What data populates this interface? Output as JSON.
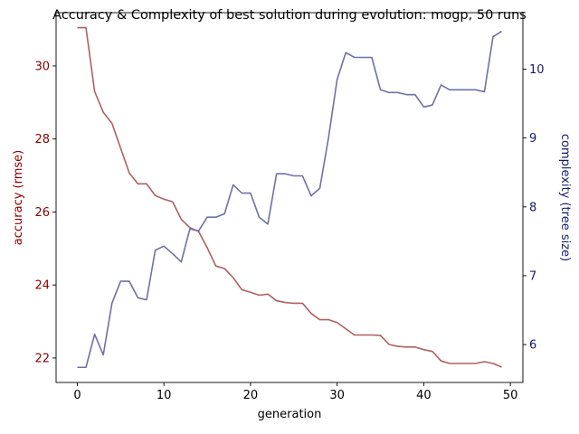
{
  "chart_data": {
    "type": "line",
    "title": "Accuracy & Complexity of best solution during evolution: mogp, 50 runs",
    "xlabel": "generation",
    "xlim": [
      -2.45,
      51.45
    ],
    "xticks": [
      0,
      10,
      20,
      30,
      40,
      50
    ],
    "x": [
      0,
      1,
      2,
      3,
      4,
      5,
      6,
      7,
      8,
      9,
      10,
      11,
      12,
      13,
      14,
      15,
      16,
      17,
      18,
      19,
      20,
      21,
      22,
      23,
      24,
      25,
      26,
      27,
      28,
      29,
      30,
      31,
      32,
      33,
      34,
      35,
      36,
      37,
      38,
      39,
      40,
      41,
      42,
      43,
      44,
      45,
      46,
      47,
      48,
      49
    ],
    "grid": false,
    "legend": "none",
    "axes": {
      "left": {
        "label": "accuracy (rmse)",
        "color": "#8b0000",
        "ylim": [
          21.33,
          31.46
        ],
        "ticks": [
          22,
          24,
          26,
          28,
          30
        ]
      },
      "right": {
        "label": "complexity (tree size)",
        "color": "#191970",
        "ylim": [
          5.45,
          10.82
        ],
        "ticks": [
          6,
          7,
          8,
          9,
          10
        ]
      }
    },
    "series": [
      {
        "axis": "left",
        "color": "#b06060",
        "values": [
          31.05,
          31.05,
          29.3,
          28.73,
          28.43,
          27.75,
          27.07,
          26.77,
          26.77,
          26.45,
          26.35,
          26.28,
          25.8,
          25.57,
          25.47,
          25.02,
          24.52,
          24.45,
          24.2,
          23.87,
          23.8,
          23.72,
          23.75,
          23.57,
          23.52,
          23.5,
          23.5,
          23.22,
          23.05,
          23.05,
          22.97,
          22.8,
          22.63,
          22.63,
          22.63,
          22.62,
          22.37,
          22.32,
          22.3,
          22.3,
          22.23,
          22.18,
          21.92,
          21.85,
          21.85,
          21.85,
          21.85,
          21.9,
          21.85,
          21.75
        ]
      },
      {
        "axis": "right",
        "color": "#7070a8",
        "values": [
          5.67,
          5.67,
          6.15,
          5.85,
          6.6,
          6.92,
          6.92,
          6.68,
          6.65,
          7.37,
          7.43,
          7.32,
          7.2,
          7.68,
          7.65,
          7.85,
          7.85,
          7.9,
          8.32,
          8.2,
          8.2,
          7.85,
          7.75,
          8.48,
          8.48,
          8.45,
          8.45,
          8.16,
          8.27,
          9.0,
          9.85,
          10.24,
          10.17,
          10.17,
          10.17,
          9.7,
          9.66,
          9.66,
          9.63,
          9.63,
          9.45,
          9.48,
          9.77,
          9.7,
          9.7,
          9.7,
          9.7,
          9.67,
          10.47,
          10.55
        ]
      }
    ]
  }
}
